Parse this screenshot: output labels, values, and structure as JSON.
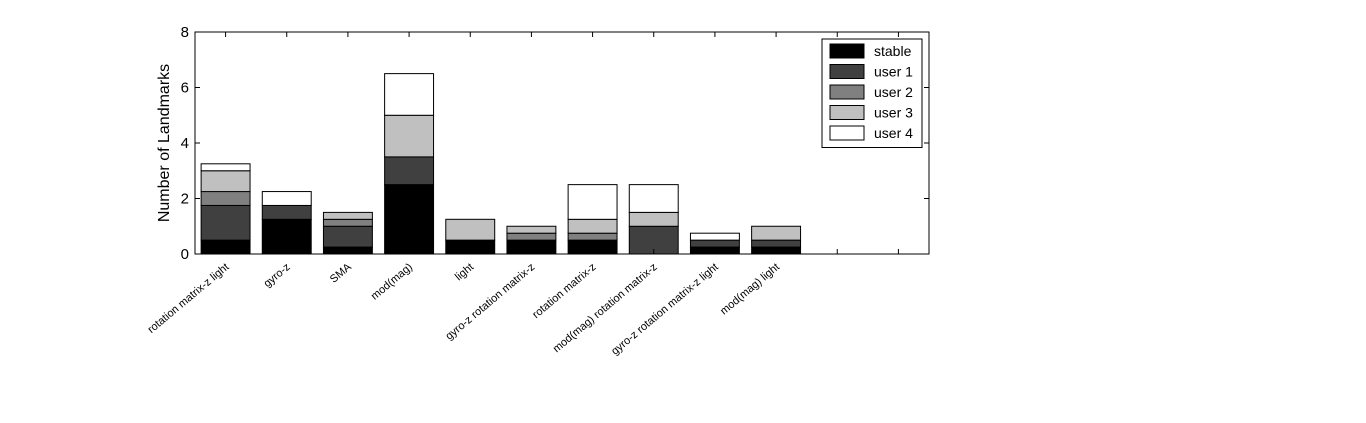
{
  "chart_data": {
    "type": "bar",
    "stacked": true,
    "title": "",
    "xlabel": "",
    "ylabel": "Number of Landmarks",
    "ylim": [
      0,
      8
    ],
    "yticks": [
      "0",
      "2",
      "4",
      "6",
      "8"
    ],
    "grid": false,
    "legend_position": "top-right",
    "categories": [
      "rotation matrix-z  light",
      "gyro-z",
      "SMA",
      "mod(mag)",
      "light",
      "gyro-z  rotation matrix-z",
      "rotation matrix-z",
      "mod(mag)  rotation matrix-z",
      "gyro-z  rotation matrix-z  light",
      "mod(mag)  light"
    ],
    "series": [
      {
        "name": "stable",
        "color": "#000000",
        "values": [
          0.5,
          1.25,
          0.25,
          2.5,
          0.5,
          0.5,
          0.5,
          0,
          0.25,
          0.25
        ]
      },
      {
        "name": "user 1",
        "color": "#404040",
        "values": [
          1.25,
          0.5,
          0.75,
          1.0,
          0,
          0,
          0,
          1.0,
          0.25,
          0.25
        ]
      },
      {
        "name": "user 2",
        "color": "#808080",
        "values": [
          0.5,
          0,
          0.25,
          0,
          0,
          0.25,
          0.25,
          0,
          0,
          0
        ]
      },
      {
        "name": "user 3",
        "color": "#c0c0c0",
        "values": [
          0.75,
          0,
          0.25,
          1.5,
          0.75,
          0.25,
          0.5,
          0.5,
          0,
          0.5
        ]
      },
      {
        "name": "user 4",
        "color": "#ffffff",
        "values": [
          0.25,
          0.5,
          0,
          1.5,
          0,
          0,
          1.25,
          1.0,
          0.25,
          0
        ]
      }
    ]
  }
}
